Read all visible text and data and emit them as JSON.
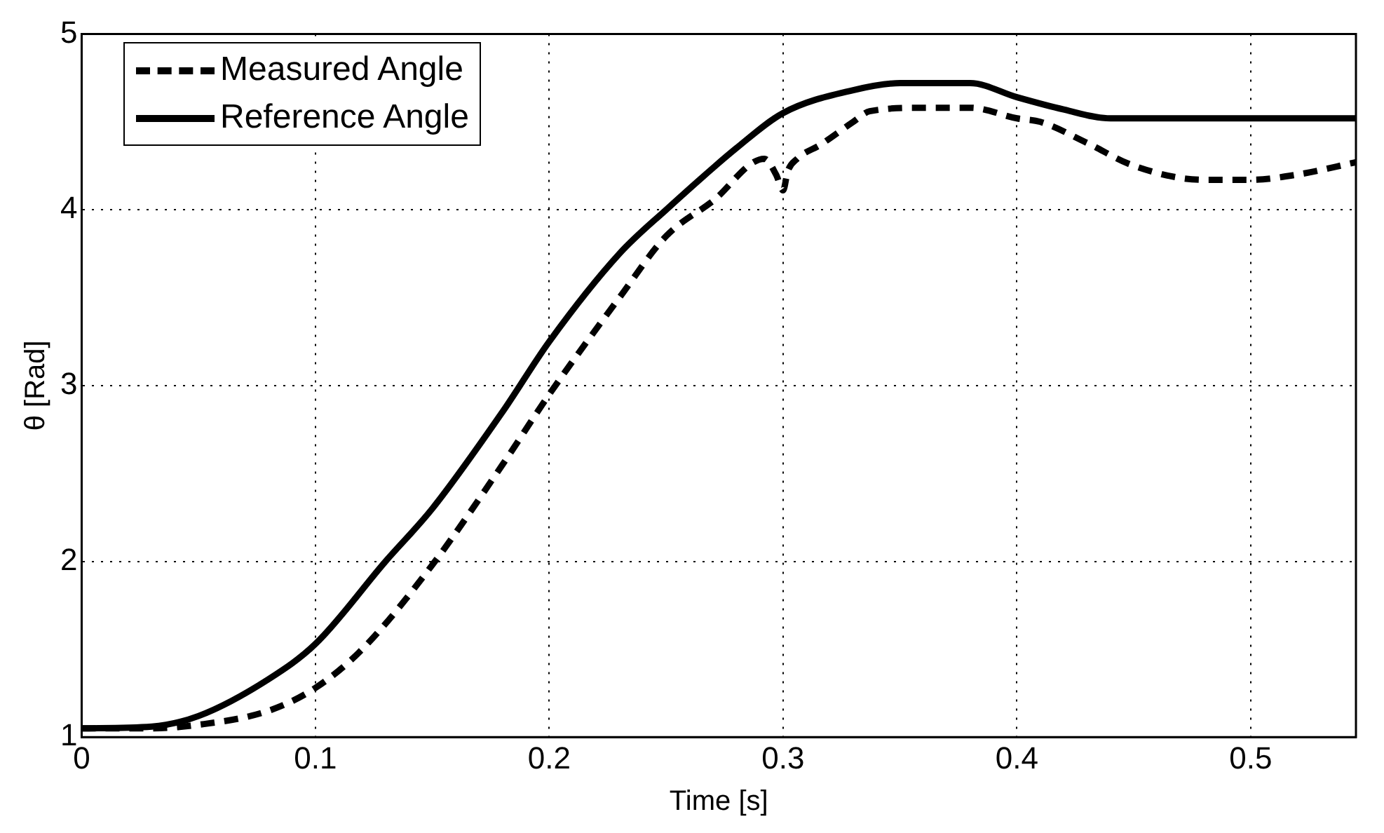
{
  "chart_data": {
    "type": "line",
    "xlabel": "Time [s]",
    "ylabel": "θ [Rad]",
    "xlim": [
      0,
      0.545
    ],
    "ylim": [
      1,
      5
    ],
    "xticks": [
      0,
      0.1,
      0.2,
      0.3,
      0.4,
      0.5
    ],
    "yticks": [
      1,
      2,
      3,
      4,
      5
    ],
    "grid": true,
    "legend": "top left",
    "series": [
      {
        "name": "Measured Angle",
        "color": "#000000",
        "line_style": "dashed",
        "x": [
          0,
          0.03,
          0.05,
          0.08,
          0.1,
          0.12,
          0.15,
          0.18,
          0.2,
          0.23,
          0.25,
          0.27,
          0.292,
          0.297,
          0.3,
          0.302,
          0.306,
          0.316,
          0.33,
          0.337,
          0.36,
          0.38,
          0.4,
          0.41,
          0.43,
          0.45,
          0.48,
          0.5,
          0.52,
          0.545
        ],
        "values": [
          1.05,
          1.05,
          1.07,
          1.15,
          1.28,
          1.5,
          1.98,
          2.55,
          2.95,
          3.5,
          3.85,
          4.05,
          4.29,
          4.2,
          4.11,
          4.22,
          4.29,
          4.37,
          4.5,
          4.56,
          4.58,
          4.58,
          4.52,
          4.5,
          4.38,
          4.25,
          4.17,
          4.17,
          4.2,
          4.27
        ]
      },
      {
        "name": "Reference Angle",
        "color": "#000000",
        "line_style": "solid",
        "x": [
          0,
          0.03,
          0.05,
          0.08,
          0.1,
          0.13,
          0.15,
          0.18,
          0.2,
          0.23,
          0.25,
          0.28,
          0.3,
          0.33,
          0.35,
          0.38,
          0.4,
          0.42,
          0.44,
          0.545
        ],
        "values": [
          1.05,
          1.06,
          1.12,
          1.33,
          1.53,
          2.0,
          2.3,
          2.85,
          3.25,
          3.75,
          4.0,
          4.35,
          4.55,
          4.68,
          4.72,
          4.72,
          4.64,
          4.57,
          4.52,
          4.52
        ]
      }
    ]
  }
}
